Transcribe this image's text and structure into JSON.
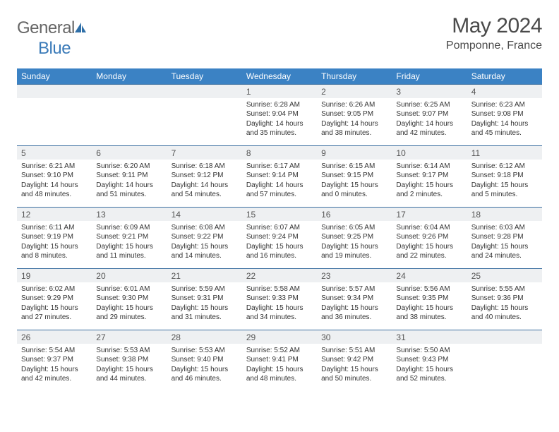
{
  "brand": {
    "part1": "General",
    "part2": "Blue"
  },
  "title": "May 2024",
  "location": "Pomponne, France",
  "colors": {
    "header_bg": "#3b82c4",
    "header_text": "#ffffff",
    "daynum_bg": "#eef0f2",
    "row_divider": "#3b6fa0",
    "body_text": "#333333",
    "title_text": "#4a4a4a"
  },
  "day_labels": [
    "Sunday",
    "Monday",
    "Tuesday",
    "Wednesday",
    "Thursday",
    "Friday",
    "Saturday"
  ],
  "weeks": [
    [
      null,
      null,
      null,
      {
        "n": "1",
        "sunrise": "6:28 AM",
        "sunset": "9:04 PM",
        "dl": "14 hours and 35 minutes."
      },
      {
        "n": "2",
        "sunrise": "6:26 AM",
        "sunset": "9:05 PM",
        "dl": "14 hours and 38 minutes."
      },
      {
        "n": "3",
        "sunrise": "6:25 AM",
        "sunset": "9:07 PM",
        "dl": "14 hours and 42 minutes."
      },
      {
        "n": "4",
        "sunrise": "6:23 AM",
        "sunset": "9:08 PM",
        "dl": "14 hours and 45 minutes."
      }
    ],
    [
      {
        "n": "5",
        "sunrise": "6:21 AM",
        "sunset": "9:10 PM",
        "dl": "14 hours and 48 minutes."
      },
      {
        "n": "6",
        "sunrise": "6:20 AM",
        "sunset": "9:11 PM",
        "dl": "14 hours and 51 minutes."
      },
      {
        "n": "7",
        "sunrise": "6:18 AM",
        "sunset": "9:12 PM",
        "dl": "14 hours and 54 minutes."
      },
      {
        "n": "8",
        "sunrise": "6:17 AM",
        "sunset": "9:14 PM",
        "dl": "14 hours and 57 minutes."
      },
      {
        "n": "9",
        "sunrise": "6:15 AM",
        "sunset": "9:15 PM",
        "dl": "15 hours and 0 minutes."
      },
      {
        "n": "10",
        "sunrise": "6:14 AM",
        "sunset": "9:17 PM",
        "dl": "15 hours and 2 minutes."
      },
      {
        "n": "11",
        "sunrise": "6:12 AM",
        "sunset": "9:18 PM",
        "dl": "15 hours and 5 minutes."
      }
    ],
    [
      {
        "n": "12",
        "sunrise": "6:11 AM",
        "sunset": "9:19 PM",
        "dl": "15 hours and 8 minutes."
      },
      {
        "n": "13",
        "sunrise": "6:09 AM",
        "sunset": "9:21 PM",
        "dl": "15 hours and 11 minutes."
      },
      {
        "n": "14",
        "sunrise": "6:08 AM",
        "sunset": "9:22 PM",
        "dl": "15 hours and 14 minutes."
      },
      {
        "n": "15",
        "sunrise": "6:07 AM",
        "sunset": "9:24 PM",
        "dl": "15 hours and 16 minutes."
      },
      {
        "n": "16",
        "sunrise": "6:05 AM",
        "sunset": "9:25 PM",
        "dl": "15 hours and 19 minutes."
      },
      {
        "n": "17",
        "sunrise": "6:04 AM",
        "sunset": "9:26 PM",
        "dl": "15 hours and 22 minutes."
      },
      {
        "n": "18",
        "sunrise": "6:03 AM",
        "sunset": "9:28 PM",
        "dl": "15 hours and 24 minutes."
      }
    ],
    [
      {
        "n": "19",
        "sunrise": "6:02 AM",
        "sunset": "9:29 PM",
        "dl": "15 hours and 27 minutes."
      },
      {
        "n": "20",
        "sunrise": "6:01 AM",
        "sunset": "9:30 PM",
        "dl": "15 hours and 29 minutes."
      },
      {
        "n": "21",
        "sunrise": "5:59 AM",
        "sunset": "9:31 PM",
        "dl": "15 hours and 31 minutes."
      },
      {
        "n": "22",
        "sunrise": "5:58 AM",
        "sunset": "9:33 PM",
        "dl": "15 hours and 34 minutes."
      },
      {
        "n": "23",
        "sunrise": "5:57 AM",
        "sunset": "9:34 PM",
        "dl": "15 hours and 36 minutes."
      },
      {
        "n": "24",
        "sunrise": "5:56 AM",
        "sunset": "9:35 PM",
        "dl": "15 hours and 38 minutes."
      },
      {
        "n": "25",
        "sunrise": "5:55 AM",
        "sunset": "9:36 PM",
        "dl": "15 hours and 40 minutes."
      }
    ],
    [
      {
        "n": "26",
        "sunrise": "5:54 AM",
        "sunset": "9:37 PM",
        "dl": "15 hours and 42 minutes."
      },
      {
        "n": "27",
        "sunrise": "5:53 AM",
        "sunset": "9:38 PM",
        "dl": "15 hours and 44 minutes."
      },
      {
        "n": "28",
        "sunrise": "5:53 AM",
        "sunset": "9:40 PM",
        "dl": "15 hours and 46 minutes."
      },
      {
        "n": "29",
        "sunrise": "5:52 AM",
        "sunset": "9:41 PM",
        "dl": "15 hours and 48 minutes."
      },
      {
        "n": "30",
        "sunrise": "5:51 AM",
        "sunset": "9:42 PM",
        "dl": "15 hours and 50 minutes."
      },
      {
        "n": "31",
        "sunrise": "5:50 AM",
        "sunset": "9:43 PM",
        "dl": "15 hours and 52 minutes."
      },
      null
    ]
  ]
}
